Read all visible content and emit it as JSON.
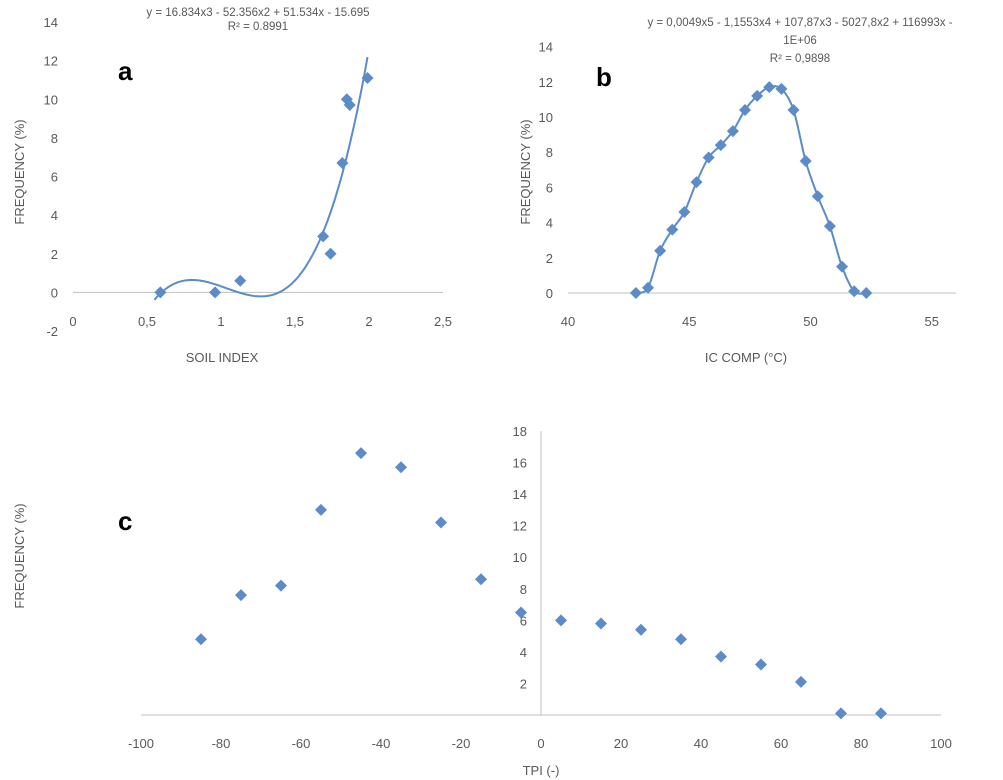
{
  "chart_data": [
    {
      "type": "scatter",
      "panel_label": "a",
      "xlabel": "SOIL INDEX",
      "ylabel": "FREQUENCY (%)",
      "xlim": [
        0,
        2.5
      ],
      "ylim": [
        -2,
        14
      ],
      "xticks": [
        "0",
        "0,5",
        "1",
        "1,5",
        "2",
        "2,5"
      ],
      "yticks": [
        "-2",
        "0",
        "2",
        "4",
        "6",
        "8",
        "10",
        "12",
        "14"
      ],
      "trendline": {
        "equation": "y = 16.834x3 - 52.356x2 + 51.534x - 15.695",
        "r2": "R² = 0.8991"
      },
      "series": [
        {
          "x": [
            0.59,
            0.96,
            1.13,
            1.69,
            1.74,
            1.82,
            1.85,
            1.87,
            1.99
          ],
          "y": [
            0,
            0,
            0.6,
            2.9,
            2.0,
            6.7,
            10.0,
            9.7,
            11.1
          ]
        }
      ]
    },
    {
      "type": "scatter",
      "panel_label": "b",
      "xlabel": "IC COMP (°C)",
      "ylabel": "FREQUENCY (%)",
      "xlim": [
        40,
        56
      ],
      "ylim": [
        0,
        15
      ],
      "xticks": [
        "40",
        "45",
        "50",
        "55"
      ],
      "yticks": [
        "0",
        "2",
        "4",
        "6",
        "8",
        "10",
        "12",
        "14"
      ],
      "trendline": {
        "equation_line1": "y = 0,0049x5 - 1,1553x4 + 107,87x3 - 5027,8x2 + 116993x -",
        "equation_line2": "1E+06",
        "r2": "R² = 0,9898"
      },
      "series": [
        {
          "x": [
            42.8,
            43.3,
            43.8,
            44.3,
            44.8,
            45.3,
            45.8,
            46.3,
            46.8,
            47.3,
            47.8,
            48.3,
            48.8,
            49.3,
            49.8,
            50.3,
            50.8,
            51.3,
            51.8,
            52.3
          ],
          "y": [
            0,
            0.3,
            2.4,
            3.6,
            4.6,
            6.3,
            7.7,
            8.4,
            9.2,
            10.4,
            11.2,
            11.7,
            11.6,
            10.4,
            7.5,
            5.5,
            3.8,
            1.5,
            0.1,
            0
          ]
        }
      ]
    },
    {
      "type": "scatter",
      "panel_label": "c",
      "xlabel": "TPI (-)",
      "ylabel": "FREQUENCY (%)",
      "xlim": [
        -100,
        100
      ],
      "ylim": [
        0,
        18
      ],
      "xticks": [
        "-100",
        "-80",
        "-60",
        "-40",
        "-20",
        "0",
        "20",
        "40",
        "60",
        "80",
        "100"
      ],
      "yticks": [
        "2",
        "4",
        "6",
        "8",
        "10",
        "12",
        "14",
        "16",
        "18"
      ],
      "series": [
        {
          "x": [
            -85,
            -75,
            -65,
            -55,
            -45,
            -35,
            -25,
            -15,
            -5,
            5,
            15,
            25,
            35,
            45,
            55,
            65,
            75,
            85
          ],
          "y": [
            4.8,
            7.6,
            8.2,
            13.0,
            16.6,
            15.7,
            12.2,
            8.6,
            6.5,
            6.0,
            5.8,
            5.4,
            4.8,
            3.7,
            3.2,
            2.1,
            0.1,
            0.1
          ]
        }
      ]
    }
  ]
}
